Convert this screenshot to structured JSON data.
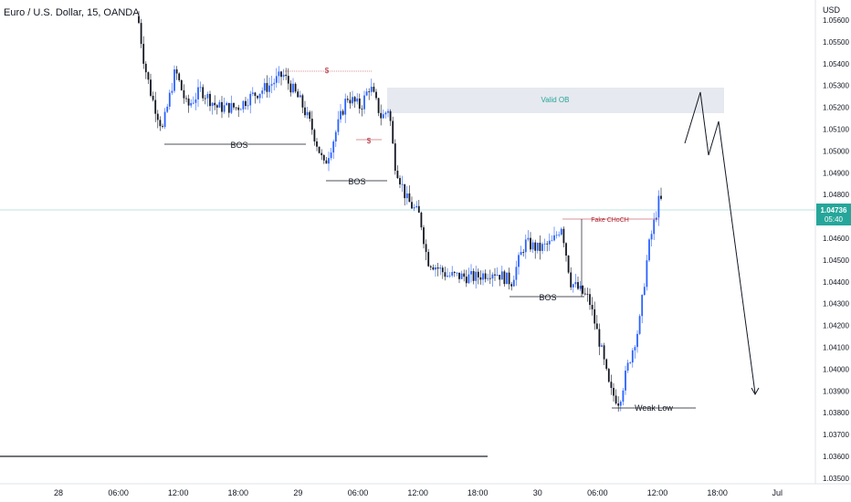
{
  "chart_data": {
    "type": "candlestick",
    "title": "Euro / U.S. Dollar, 15, OANDA",
    "currency_label": "USD",
    "ylim": [
      1.035,
      1.0565
    ],
    "y_ticks": [
      "1.05600",
      "1.05500",
      "1.05400",
      "1.05300",
      "1.05200",
      "1.05100",
      "1.05000",
      "1.04900",
      "1.04800",
      "1.04700",
      "1.04600",
      "1.04500",
      "1.04400",
      "1.04300",
      "1.04200",
      "1.04100",
      "1.04000",
      "1.03900",
      "1.03800",
      "1.03700",
      "1.03600",
      "1.03500"
    ],
    "x_ticks": [
      "28",
      "06:00",
      "12:00",
      "18:00",
      "29",
      "06:00",
      "12:00",
      "18:00",
      "30",
      "06:00",
      "12:00",
      "18:00",
      "Jul"
    ],
    "last_price": "1.04736",
    "countdown": "05:40",
    "colors": {
      "bull": "#2962ff",
      "bear": "#131722",
      "last_price": "#26a69a",
      "ob_zone": "#e0e3eb",
      "ob_text": "#26a69a",
      "choch": "#b22833"
    },
    "annotations": {
      "bos1": "BOS",
      "bos2": "BOS",
      "bos3": "BOS",
      "valid_ob": "Valid OB",
      "fake_choch": "Fake CHoCH",
      "weak_low": "Weak Low",
      "liq_high": "$",
      "liq_low": "$"
    }
  }
}
